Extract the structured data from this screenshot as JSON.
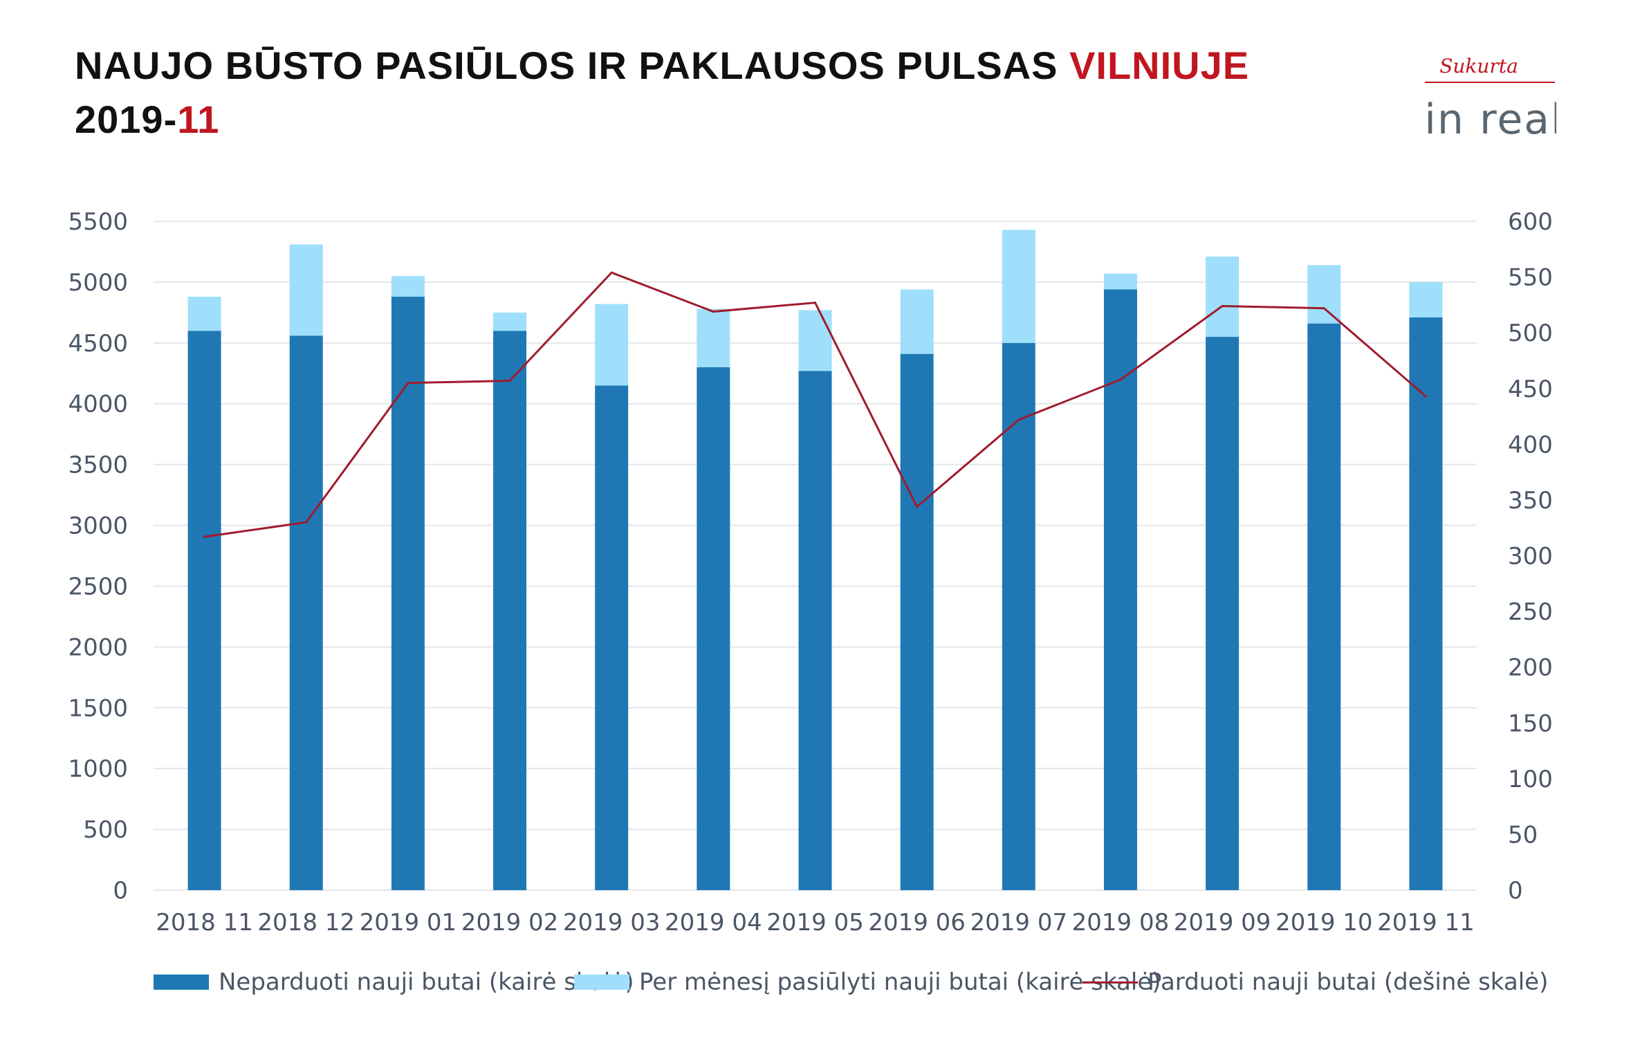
{
  "header": {
    "title_main": "NAUJO BŪSTO PASIŪLOS IR PAKLAUSOS PULSAS",
    "title_highlight": "VILNIUJE",
    "date_prefix": "2019-",
    "date_highlight": "11"
  },
  "logo": {
    "tagline": "Sukurta",
    "brand": "in real"
  },
  "colors": {
    "unsold": "#1f78b4",
    "offered": "#9fdffb",
    "sold": "#a01b2d",
    "highlight": "#c0161f",
    "grid": "#e3e6ea",
    "axis_text": "#4a5565"
  },
  "chart_data": {
    "type": "bar",
    "stacked": true,
    "categories": [
      "2018 11",
      "2018 12",
      "2019 01",
      "2019 02",
      "2019 03",
      "2019 04",
      "2019 05",
      "2019 06",
      "2019 07",
      "2019 08",
      "2019 09",
      "2019 10",
      "2019 11"
    ],
    "series": [
      {
        "name": "Neparduoti nauji butai (kairė skalė)",
        "type": "bar",
        "axis": "left",
        "values": [
          4600,
          4560,
          4880,
          4600,
          4150,
          4300,
          4270,
          4410,
          4500,
          4940,
          4550,
          4660,
          4710
        ]
      },
      {
        "name": "Per mėnesį pasiūlyti nauji butai (kairė skalė)",
        "type": "bar",
        "axis": "left",
        "values": [
          280,
          750,
          170,
          150,
          670,
          480,
          500,
          530,
          930,
          130,
          660,
          480,
          290
        ]
      },
      {
        "name": "Parduoti nauji butai (dešinė skalė)",
        "type": "line",
        "axis": "right",
        "values": [
          317,
          330,
          455,
          457,
          554,
          519,
          527,
          344,
          422,
          458,
          524,
          522,
          443
        ]
      }
    ],
    "y_left": {
      "min": 0,
      "max": 5500,
      "ticks": [
        "0",
        "500",
        "1000",
        "1500",
        "2000",
        "2500",
        "3000",
        "3500",
        "4000",
        "4500",
        "5000",
        "5500"
      ]
    },
    "y_right": {
      "min": 0,
      "max": 600,
      "ticks": [
        "0",
        "50",
        "100",
        "150",
        "200",
        "250",
        "300",
        "350",
        "400",
        "450",
        "500",
        "550",
        "600"
      ]
    },
    "grid": true,
    "legend_position": "bottom"
  }
}
